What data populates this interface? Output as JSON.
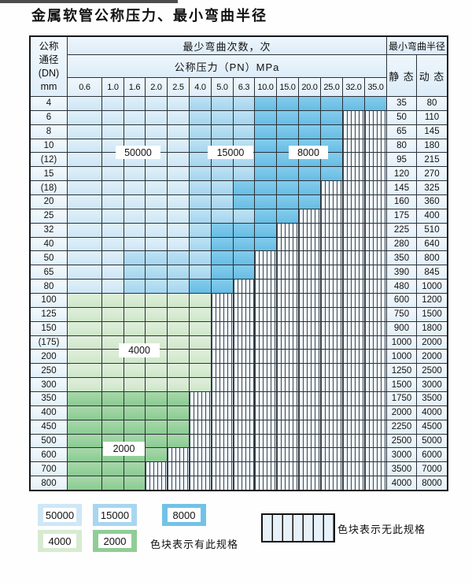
{
  "title": "金属软管公称压力、最小弯曲半径",
  "table": {
    "header": {
      "dn_lines": [
        "公称",
        "通径",
        "(DN)",
        "mm"
      ],
      "cycles_title": "最少弯曲次数，次",
      "pressure_title": "公称压力（PN）MPa",
      "radius_title": "最小弯曲半径",
      "static_label": "静 态",
      "dynamic_label": "动 态",
      "pressures": [
        "0.6",
        "1.0",
        "1.6",
        "2.0",
        "2.5",
        "4.0",
        "5.0",
        "6.3",
        "10.0",
        "15.0",
        "20.0",
        "25.0",
        "32.0",
        "35.0"
      ]
    },
    "cell_legend": {
      "c50": "50000次区域",
      "c15": "15000次区域",
      "c8": "8000次区域",
      "g4": "4000次区域",
      "g2": "2000次区域",
      "hx": "无此规格(斜线格)"
    },
    "rows": [
      {
        "dn": "4",
        "cells": [
          "c50",
          "c50",
          "c50",
          "c50",
          "c50",
          "c15",
          "c15",
          "c15",
          "c8",
          "c8",
          "c8",
          "c8",
          "c8",
          "c8"
        ],
        "static": "35",
        "dynamic": "80"
      },
      {
        "dn": "6",
        "cells": [
          "c50",
          "c50",
          "c50",
          "c50",
          "c50",
          "c15",
          "c15",
          "c15",
          "c8",
          "c8",
          "c8",
          "c8",
          "hx",
          "hx"
        ],
        "static": "50",
        "dynamic": "110"
      },
      {
        "dn": "8",
        "cells": [
          "c50",
          "c50",
          "c50",
          "c50",
          "c50",
          "c15",
          "c15",
          "c15",
          "c8",
          "c8",
          "c8",
          "c8",
          "hx",
          "hx"
        ],
        "static": "65",
        "dynamic": "145"
      },
      {
        "dn": "10",
        "cells": [
          "c50",
          "c50",
          "c50",
          "c50",
          "c50",
          "c15",
          "c15",
          "c15",
          "c8",
          "c8",
          "c8",
          "c8",
          "hx",
          "hx"
        ],
        "static": "80",
        "dynamic": "180"
      },
      {
        "dn": "(12)",
        "cells": [
          "c50",
          "c50",
          "c50",
          "c50",
          "c50",
          "c15",
          "c15",
          "c15",
          "c8",
          "c8",
          "c8",
          "c8",
          "hx",
          "hx"
        ],
        "static": "95",
        "dynamic": "215"
      },
      {
        "dn": "15",
        "cells": [
          "c50",
          "c50",
          "c50",
          "c50",
          "c50",
          "c15",
          "c15",
          "c15",
          "c8",
          "c8",
          "c8",
          "c8",
          "hx",
          "hx"
        ],
        "static": "120",
        "dynamic": "270"
      },
      {
        "dn": "(18)",
        "cells": [
          "c50",
          "c50",
          "c50",
          "c50",
          "c50",
          "c15",
          "c15",
          "c8",
          "c8",
          "c8",
          "c8",
          "hx",
          "hx",
          "hx"
        ],
        "static": "145",
        "dynamic": "325"
      },
      {
        "dn": "20",
        "cells": [
          "c50",
          "c50",
          "c50",
          "c50",
          "c50",
          "c15",
          "c15",
          "c8",
          "c8",
          "c8",
          "c8",
          "hx",
          "hx",
          "hx"
        ],
        "static": "160",
        "dynamic": "360"
      },
      {
        "dn": "25",
        "cells": [
          "c50",
          "c50",
          "c50",
          "c50",
          "c50",
          "c15",
          "c15",
          "c15",
          "c8",
          "c8",
          "hx",
          "hx",
          "hx",
          "hx"
        ],
        "static": "175",
        "dynamic": "400"
      },
      {
        "dn": "32",
        "cells": [
          "c50",
          "c50",
          "c50",
          "c50",
          "c50",
          "c15",
          "c8",
          "c8",
          "c8",
          "hx",
          "hx",
          "hx",
          "hx",
          "hx"
        ],
        "static": "225",
        "dynamic": "510"
      },
      {
        "dn": "40",
        "cells": [
          "c50",
          "c50",
          "c50",
          "c50",
          "c50",
          "c15",
          "c8",
          "c8",
          "c8",
          "hx",
          "hx",
          "hx",
          "hx",
          "hx"
        ],
        "static": "280",
        "dynamic": "640"
      },
      {
        "dn": "50",
        "cells": [
          "c50",
          "c50",
          "c15",
          "c15",
          "c15",
          "c15",
          "c8",
          "c8",
          "hx",
          "hx",
          "hx",
          "hx",
          "hx",
          "hx"
        ],
        "static": "350",
        "dynamic": "800"
      },
      {
        "dn": "65",
        "cells": [
          "c50",
          "c50",
          "c15",
          "c15",
          "c15",
          "c15",
          "c8",
          "c8",
          "hx",
          "hx",
          "hx",
          "hx",
          "hx",
          "hx"
        ],
        "static": "390",
        "dynamic": "845"
      },
      {
        "dn": "80",
        "cells": [
          "c50",
          "c50",
          "c15",
          "c15",
          "c15",
          "c8",
          "c8",
          "hx",
          "hx",
          "hx",
          "hx",
          "hx",
          "hx",
          "hx"
        ],
        "static": "480",
        "dynamic": "1000"
      },
      {
        "dn": "100",
        "cells": [
          "g4",
          "g4",
          "g4",
          "g4",
          "g4",
          "g4",
          "hx",
          "hx",
          "hx",
          "hx",
          "hx",
          "hx",
          "hx",
          "hx"
        ],
        "static": "600",
        "dynamic": "1200"
      },
      {
        "dn": "125",
        "cells": [
          "g4",
          "g4",
          "g4",
          "g4",
          "g4",
          "g4",
          "hx",
          "hx",
          "hx",
          "hx",
          "hx",
          "hx",
          "hx",
          "hx"
        ],
        "static": "750",
        "dynamic": "1500"
      },
      {
        "dn": "150",
        "cells": [
          "g4",
          "g4",
          "g4",
          "g4",
          "g4",
          "g4",
          "hx",
          "hx",
          "hx",
          "hx",
          "hx",
          "hx",
          "hx",
          "hx"
        ],
        "static": "900",
        "dynamic": "1800"
      },
      {
        "dn": "(175)",
        "cells": [
          "g4",
          "g4",
          "g4",
          "g4",
          "g4",
          "g4",
          "hx",
          "hx",
          "hx",
          "hx",
          "hx",
          "hx",
          "hx",
          "hx"
        ],
        "static": "1000",
        "dynamic": "2000"
      },
      {
        "dn": "200",
        "cells": [
          "g4",
          "g4",
          "g4",
          "g4",
          "g4",
          "g4",
          "hx",
          "hx",
          "hx",
          "hx",
          "hx",
          "hx",
          "hx",
          "hx"
        ],
        "static": "1000",
        "dynamic": "2000"
      },
      {
        "dn": "250",
        "cells": [
          "g4",
          "g4",
          "g4",
          "g4",
          "g4",
          "g4",
          "hx",
          "hx",
          "hx",
          "hx",
          "hx",
          "hx",
          "hx",
          "hx"
        ],
        "static": "1250",
        "dynamic": "2500"
      },
      {
        "dn": "300",
        "cells": [
          "g4",
          "g4",
          "g4",
          "g4",
          "g4",
          "g4",
          "hx",
          "hx",
          "hx",
          "hx",
          "hx",
          "hx",
          "hx",
          "hx"
        ],
        "static": "1500",
        "dynamic": "3000"
      },
      {
        "dn": "350",
        "cells": [
          "g2",
          "g2",
          "g2",
          "g2",
          "g2",
          "hx",
          "hx",
          "hx",
          "hx",
          "hx",
          "hx",
          "hx",
          "hx",
          "hx"
        ],
        "static": "1750",
        "dynamic": "3500"
      },
      {
        "dn": "400",
        "cells": [
          "g2",
          "g2",
          "g2",
          "g2",
          "g2",
          "hx",
          "hx",
          "hx",
          "hx",
          "hx",
          "hx",
          "hx",
          "hx",
          "hx"
        ],
        "static": "2000",
        "dynamic": "4000"
      },
      {
        "dn": "450",
        "cells": [
          "g2",
          "g2",
          "g2",
          "g2",
          "g2",
          "hx",
          "hx",
          "hx",
          "hx",
          "hx",
          "hx",
          "hx",
          "hx",
          "hx"
        ],
        "static": "2250",
        "dynamic": "4500"
      },
      {
        "dn": "500",
        "cells": [
          "g2",
          "g2",
          "g2",
          "g2",
          "g2",
          "hx",
          "hx",
          "hx",
          "hx",
          "hx",
          "hx",
          "hx",
          "hx",
          "hx"
        ],
        "static": "2500",
        "dynamic": "5000"
      },
      {
        "dn": "600",
        "cells": [
          "g2",
          "g2",
          "g2",
          "g2",
          "hx",
          "hx",
          "hx",
          "hx",
          "hx",
          "hx",
          "hx",
          "hx",
          "hx",
          "hx"
        ],
        "static": "3000",
        "dynamic": "6000"
      },
      {
        "dn": "700",
        "cells": [
          "g2",
          "g2",
          "g2",
          "hx",
          "hx",
          "hx",
          "hx",
          "hx",
          "hx",
          "hx",
          "hx",
          "hx",
          "hx",
          "hx"
        ],
        "static": "3500",
        "dynamic": "7000"
      },
      {
        "dn": "800",
        "cells": [
          "g2",
          "g2",
          "g2",
          "hx",
          "hx",
          "hx",
          "hx",
          "hx",
          "hx",
          "hx",
          "hx",
          "hx",
          "hx",
          "hx"
        ],
        "static": "4000",
        "dynamic": "8000"
      }
    ]
  },
  "overlay_labels": {
    "b50000": "50000",
    "b15000": "15000",
    "b8000": "8000",
    "b4000": "4000",
    "b2000": "2000"
  },
  "legend": {
    "swatches": [
      {
        "value": "50000",
        "color": "#cfe7f6"
      },
      {
        "value": "15000",
        "color": "#a8d6f0"
      },
      {
        "value": "8000",
        "color": "#72c2e8"
      },
      {
        "value": "4000",
        "color": "#d7ebd1"
      },
      {
        "value": "2000",
        "color": "#90cd96"
      }
    ],
    "has_spec_text": "色块表示有此规格",
    "no_spec_text": "色块表示无此规格"
  },
  "colors": {
    "cycles_50000": "#cfe7f6",
    "cycles_15000": "#a8d6f0",
    "cycles_8000": "#72c2e8",
    "cycles_4000": "#d7ebd1",
    "cycles_2000": "#90cd96",
    "hatch_bg": "#eef5fb",
    "grid_line": "#2b3138"
  }
}
